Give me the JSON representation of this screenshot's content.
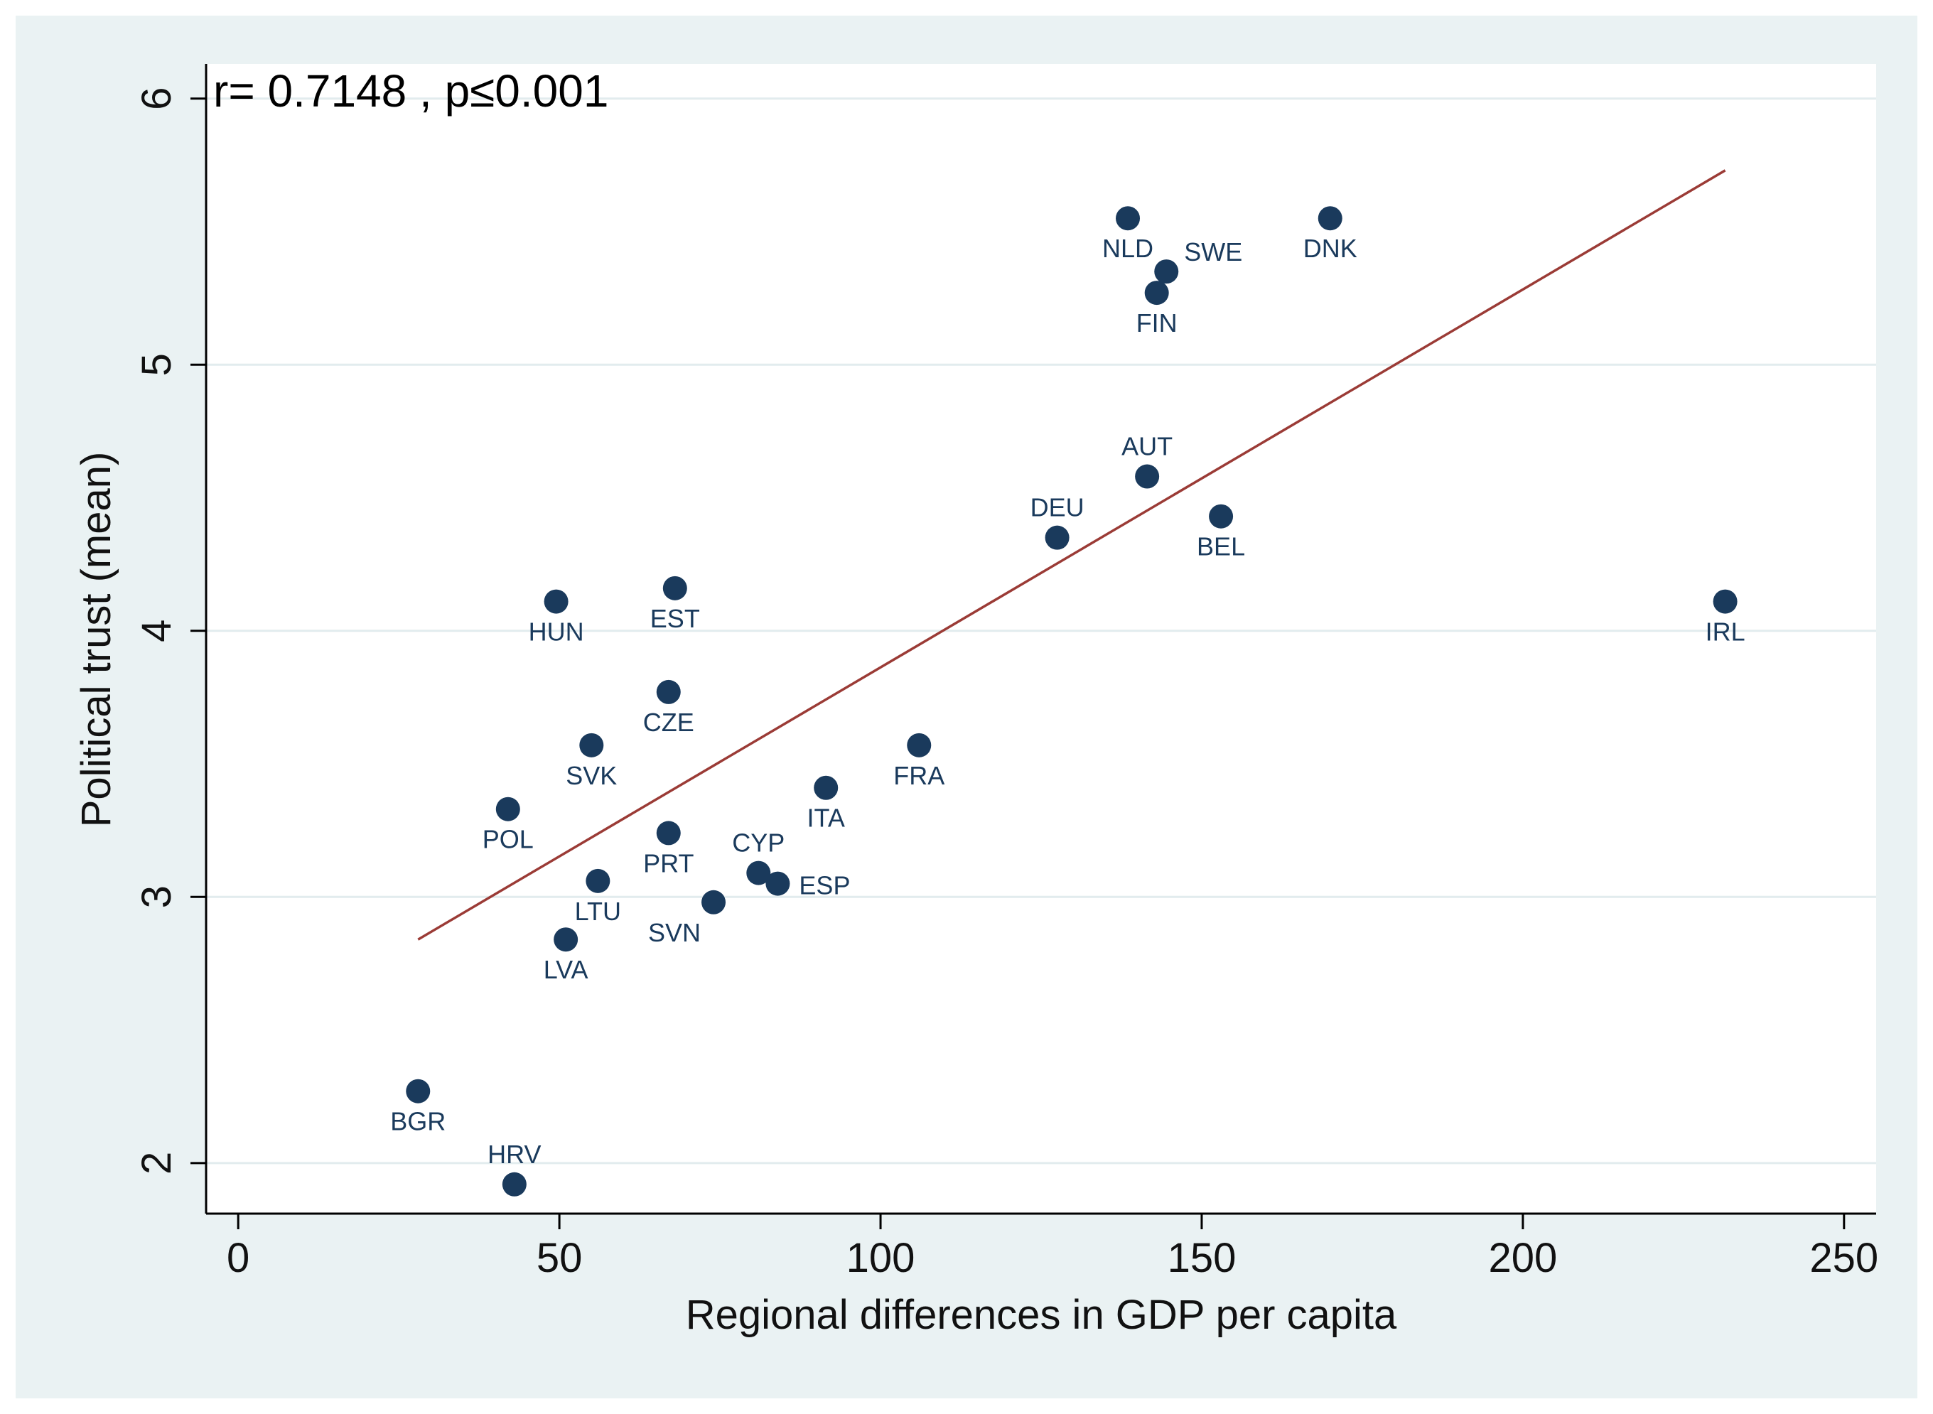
{
  "chart_data": {
    "type": "scatter",
    "title": "",
    "annotation": "r= 0.7148 , p≤0.001",
    "xlabel": "Regional differences in GDP per capita",
    "ylabel": "Political trust (mean)",
    "xlim": [
      -5,
      255
    ],
    "ylim": [
      1.81,
      6.13
    ],
    "xticks": [
      0,
      50,
      100,
      150,
      200,
      250
    ],
    "yticks": [
      2,
      3,
      4,
      5,
      6
    ],
    "grid": "horizontal",
    "points": [
      {
        "label": "NLD",
        "x": 138.5,
        "y": 5.55,
        "pos": "below"
      },
      {
        "label": "SWE",
        "x": 144.5,
        "y": 5.35,
        "pos": "upper-right"
      },
      {
        "label": "FIN",
        "x": 143,
        "y": 5.27,
        "pos": "below"
      },
      {
        "label": "DNK",
        "x": 170,
        "y": 5.55,
        "pos": "below"
      },
      {
        "label": "AUT",
        "x": 141.5,
        "y": 4.58,
        "pos": "above"
      },
      {
        "label": "DEU",
        "x": 127.5,
        "y": 4.35,
        "pos": "above"
      },
      {
        "label": "BEL",
        "x": 153,
        "y": 4.43,
        "pos": "below"
      },
      {
        "label": "IRL",
        "x": 231.5,
        "y": 4.11,
        "pos": "below"
      },
      {
        "label": "HUN",
        "x": 49.5,
        "y": 4.11,
        "pos": "below"
      },
      {
        "label": "EST",
        "x": 68,
        "y": 4.16,
        "pos": "below"
      },
      {
        "label": "CZE",
        "x": 67,
        "y": 3.77,
        "pos": "below"
      },
      {
        "label": "SVK",
        "x": 55,
        "y": 3.57,
        "pos": "below"
      },
      {
        "label": "FRA",
        "x": 106,
        "y": 3.57,
        "pos": "below"
      },
      {
        "label": "ITA",
        "x": 91.5,
        "y": 3.41,
        "pos": "below"
      },
      {
        "label": "POL",
        "x": 42,
        "y": 3.33,
        "pos": "below"
      },
      {
        "label": "PRT",
        "x": 67,
        "y": 3.24,
        "pos": "below"
      },
      {
        "label": "CYP",
        "x": 81,
        "y": 3.09,
        "pos": "above"
      },
      {
        "label": "ESP",
        "x": 84,
        "y": 3.05,
        "pos": "right"
      },
      {
        "label": "LTU",
        "x": 56,
        "y": 3.06,
        "pos": "below"
      },
      {
        "label": "SVN",
        "x": 74,
        "y": 2.98,
        "pos": "below-left"
      },
      {
        "label": "LVA",
        "x": 51,
        "y": 2.84,
        "pos": "below"
      },
      {
        "label": "BGR",
        "x": 28,
        "y": 2.27,
        "pos": "below"
      },
      {
        "label": "HRV",
        "x": 43,
        "y": 1.92,
        "pos": "above"
      }
    ],
    "fit_line": {
      "x": [
        28,
        231.5
      ],
      "y": [
        2.84,
        5.73
      ]
    },
    "colors": {
      "marker": "#1a3a5c",
      "label": "#1a3a5c",
      "fit": "#9b3b36",
      "background": "#eaf2f3",
      "plot": "#ffffff",
      "grid": "#e2ecee",
      "axis": "#000000"
    }
  }
}
